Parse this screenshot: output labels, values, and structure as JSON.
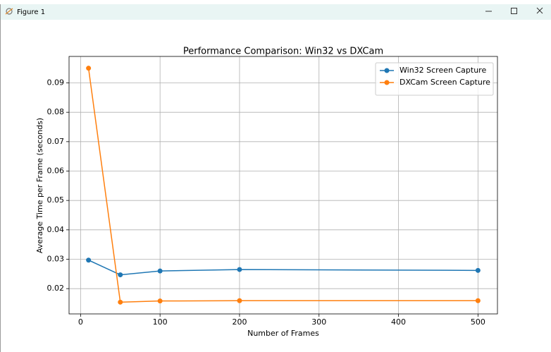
{
  "window": {
    "title": "Figure 1"
  },
  "chart_data": {
    "type": "line",
    "title": "Performance Comparison: Win32 vs DXCam",
    "x_label": "Number of Frames",
    "y_label": "Average Time per Frame (seconds)",
    "x": [
      10,
      50,
      100,
      200,
      500
    ],
    "series": [
      {
        "name": "Win32 Screen Capture",
        "color": "#1f77b4",
        "values": [
          0.0297,
          0.0247,
          0.026,
          0.0265,
          0.0262
        ]
      },
      {
        "name": "DXCam Screen Capture",
        "color": "#ff7f0e",
        "values": [
          0.095,
          0.0154,
          0.0158,
          0.0159,
          0.0159
        ]
      }
    ],
    "xlim": [
      -14.5,
      524.5
    ],
    "xticks": [
      0,
      100,
      200,
      300,
      400,
      500
    ],
    "ylim": [
      0.0114,
      0.099
    ],
    "yticks": [
      0.02,
      0.03,
      0.04,
      0.05,
      0.06,
      0.07,
      0.08,
      0.09
    ],
    "grid": true,
    "legend": "upper right"
  }
}
